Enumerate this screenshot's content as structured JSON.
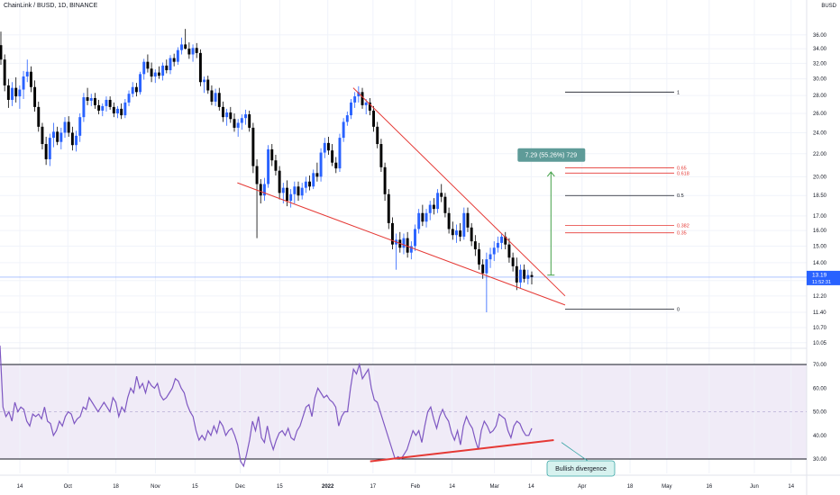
{
  "header": {
    "title": "ChainLink / BUSD, 1D, BINANCE",
    "currency": "BUSD"
  },
  "chart_data": [
    {
      "type": "candlestick",
      "title": "ChainLink / BUSD, 1D, BINANCE",
      "y_ticks": [
        "10.05",
        "10.70",
        "11.40",
        "12.20",
        "13.00",
        "14.00",
        "15.00",
        "16.00",
        "17.00",
        "18.50",
        "20.00",
        "22.00",
        "24.00",
        "26.00",
        "28.00",
        "30.00",
        "32.00",
        "34.00",
        "36.00"
      ],
      "x_ticks": [
        "14",
        "Oct",
        "18",
        "Nov",
        "15",
        "Dec",
        "15",
        "2022",
        "17",
        "Feb",
        "14",
        "Mar",
        "14",
        "Apr",
        "18",
        "May",
        "16",
        "Jun",
        "14"
      ],
      "current_price": "13.19",
      "countdown": "11:52:31",
      "colors": {
        "up": "#2962ff",
        "down": "#000000",
        "wedge": "#e53935",
        "projection": "#43a047",
        "price_line": "#2962ff"
      },
      "candles": [
        [
          34.5,
          36.5,
          31.8,
          32.5
        ],
        [
          32.5,
          33.2,
          28.5,
          29.2
        ],
        [
          29.2,
          30.0,
          26.6,
          27.5
        ],
        [
          27.5,
          29.6,
          26.8,
          28.9
        ],
        [
          28.9,
          30.2,
          27.2,
          27.9
        ],
        [
          27.9,
          29.2,
          26.5,
          28.7
        ],
        [
          28.7,
          31.0,
          27.6,
          30.3
        ],
        [
          30.3,
          32.5,
          29.6,
          30.9
        ],
        [
          30.9,
          31.6,
          28.4,
          29.0
        ],
        [
          29.0,
          29.8,
          26.2,
          26.7
        ],
        [
          26.7,
          27.3,
          24.1,
          24.6
        ],
        [
          24.6,
          25.0,
          22.4,
          22.9
        ],
        [
          22.9,
          23.6,
          21.0,
          21.5
        ],
        [
          21.5,
          23.9,
          20.9,
          23.5
        ],
        [
          23.5,
          25.0,
          22.6,
          24.1
        ],
        [
          24.1,
          24.6,
          22.8,
          23.1
        ],
        [
          23.1,
          24.5,
          22.4,
          24.0
        ],
        [
          24.0,
          25.6,
          23.5,
          25.1
        ],
        [
          25.1,
          25.7,
          23.6,
          24.0
        ],
        [
          24.0,
          24.6,
          22.3,
          22.8
        ],
        [
          22.8,
          24.2,
          22.2,
          23.7
        ],
        [
          23.7,
          26.0,
          23.1,
          25.6
        ],
        [
          25.6,
          28.3,
          25.1,
          27.8
        ],
        [
          27.8,
          28.9,
          26.9,
          27.4
        ],
        [
          27.4,
          28.2,
          26.8,
          27.7
        ],
        [
          27.7,
          28.3,
          26.5,
          26.9
        ],
        [
          26.9,
          27.5,
          25.9,
          26.3
        ],
        [
          26.3,
          27.1,
          25.7,
          26.8
        ],
        [
          26.8,
          27.9,
          26.2,
          27.5
        ],
        [
          27.5,
          27.9,
          26.4,
          26.7
        ],
        [
          26.7,
          27.2,
          25.6,
          26.0
        ],
        [
          26.0,
          26.8,
          25.5,
          26.5
        ],
        [
          26.5,
          27.1,
          25.4,
          25.8
        ],
        [
          25.8,
          27.6,
          25.5,
          27.2
        ],
        [
          27.2,
          28.6,
          26.8,
          28.2
        ],
        [
          28.2,
          29.6,
          27.8,
          29.0
        ],
        [
          29.0,
          29.5,
          27.9,
          28.4
        ],
        [
          28.4,
          30.9,
          28.1,
          30.6
        ],
        [
          30.6,
          32.6,
          29.9,
          32.2
        ],
        [
          32.2,
          33.2,
          30.8,
          31.3
        ],
        [
          31.3,
          32.1,
          29.6,
          30.3
        ],
        [
          30.3,
          31.2,
          29.5,
          30.8
        ],
        [
          30.8,
          31.6,
          30.0,
          30.4
        ],
        [
          30.4,
          32.1,
          29.8,
          31.7
        ],
        [
          31.7,
          32.5,
          30.7,
          31.1
        ],
        [
          31.1,
          33.1,
          30.6,
          32.7
        ],
        [
          32.7,
          33.3,
          31.6,
          32.2
        ],
        [
          32.2,
          34.2,
          31.8,
          33.8
        ],
        [
          33.8,
          35.6,
          33.2,
          34.6
        ],
        [
          34.6,
          36.9,
          33.9,
          34.0
        ],
        [
          34.0,
          34.9,
          32.6,
          33.2
        ],
        [
          33.2,
          34.6,
          32.2,
          34.1
        ],
        [
          34.1,
          34.8,
          32.7,
          33.4
        ],
        [
          33.4,
          33.9,
          29.1,
          29.6
        ],
        [
          29.6,
          30.3,
          28.3,
          29.9
        ],
        [
          29.9,
          30.4,
          28.2,
          28.6
        ],
        [
          28.6,
          29.2,
          26.9,
          27.3
        ],
        [
          27.3,
          28.8,
          26.8,
          28.3
        ],
        [
          28.3,
          28.9,
          26.3,
          26.7
        ],
        [
          26.7,
          27.3,
          25.1,
          25.6
        ],
        [
          25.6,
          26.5,
          24.7,
          26.1
        ],
        [
          26.1,
          26.7,
          25.0,
          25.4
        ],
        [
          25.4,
          26.0,
          24.1,
          24.5
        ],
        [
          24.5,
          25.4,
          23.6,
          25.0
        ],
        [
          25.0,
          25.9,
          24.3,
          25.5
        ],
        [
          25.5,
          26.4,
          24.8,
          25.9
        ],
        [
          25.9,
          26.3,
          24.1,
          24.5
        ],
        [
          24.5,
          25.0,
          20.3,
          20.9
        ],
        [
          20.9,
          21.5,
          15.5,
          19.4
        ],
        [
          19.4,
          19.8,
          17.9,
          18.5
        ],
        [
          18.5,
          19.9,
          18.1,
          19.4
        ],
        [
          19.4,
          22.8,
          19.1,
          22.4
        ],
        [
          22.4,
          22.9,
          20.9,
          21.4
        ],
        [
          21.4,
          21.9,
          20.1,
          20.5
        ],
        [
          20.5,
          20.9,
          18.2,
          18.7
        ],
        [
          18.7,
          19.5,
          17.9,
          19.1
        ],
        [
          19.1,
          19.7,
          17.7,
          18.1
        ],
        [
          18.1,
          19.0,
          17.6,
          18.6
        ],
        [
          18.6,
          19.6,
          17.9,
          19.2
        ],
        [
          19.2,
          19.6,
          18.1,
          18.5
        ],
        [
          18.5,
          19.5,
          18.2,
          19.1
        ],
        [
          19.1,
          20.0,
          18.7,
          19.6
        ],
        [
          19.6,
          20.1,
          18.9,
          19.2
        ],
        [
          19.2,
          20.6,
          19.0,
          20.3
        ],
        [
          20.3,
          21.2,
          19.6,
          20.0
        ],
        [
          20.0,
          22.5,
          19.6,
          22.1
        ],
        [
          22.1,
          23.5,
          21.6,
          23.0
        ],
        [
          23.0,
          23.6,
          21.9,
          22.3
        ],
        [
          22.3,
          22.9,
          20.9,
          21.2
        ],
        [
          21.2,
          21.7,
          20.3,
          20.7
        ],
        [
          20.7,
          23.9,
          20.4,
          23.5
        ],
        [
          23.5,
          25.5,
          23.1,
          25.1
        ],
        [
          25.1,
          26.2,
          24.7,
          25.8
        ],
        [
          25.8,
          27.6,
          25.4,
          27.2
        ],
        [
          27.2,
          28.4,
          26.6,
          27.9
        ],
        [
          27.9,
          29.1,
          27.2,
          28.4
        ],
        [
          28.4,
          28.9,
          26.5,
          26.9
        ],
        [
          26.9,
          27.6,
          25.9,
          27.2
        ],
        [
          27.2,
          27.7,
          25.8,
          26.3
        ],
        [
          26.3,
          26.8,
          24.1,
          24.6
        ],
        [
          24.6,
          25.1,
          22.5,
          22.9
        ],
        [
          22.9,
          23.4,
          20.4,
          20.8
        ],
        [
          20.8,
          21.2,
          18.1,
          18.6
        ],
        [
          18.6,
          19.0,
          16.1,
          16.5
        ],
        [
          16.5,
          16.9,
          14.8,
          15.1
        ],
        [
          15.1,
          15.8,
          13.6,
          15.4
        ],
        [
          15.4,
          15.9,
          14.6,
          14.9
        ],
        [
          14.9,
          15.8,
          14.5,
          15.5
        ],
        [
          15.5,
          15.9,
          14.3,
          14.6
        ],
        [
          14.6,
          15.3,
          14.2,
          15.0
        ],
        [
          15.0,
          16.4,
          14.7,
          16.1
        ],
        [
          16.1,
          17.5,
          15.8,
          17.2
        ],
        [
          17.2,
          17.8,
          16.3,
          16.6
        ],
        [
          16.6,
          17.5,
          16.2,
          17.2
        ],
        [
          17.2,
          18.1,
          16.7,
          17.8
        ],
        [
          17.8,
          18.3,
          17.1,
          17.5
        ],
        [
          17.5,
          19.0,
          17.2,
          18.7
        ],
        [
          18.7,
          19.4,
          18.0,
          18.4
        ],
        [
          18.4,
          18.7,
          16.9,
          17.2
        ],
        [
          17.2,
          17.6,
          15.8,
          16.1
        ],
        [
          16.1,
          16.6,
          15.4,
          15.7
        ],
        [
          15.7,
          16.4,
          15.2,
          16.0
        ],
        [
          16.0,
          16.5,
          15.3,
          15.6
        ],
        [
          15.6,
          17.6,
          15.4,
          17.2
        ],
        [
          17.2,
          17.6,
          15.9,
          16.2
        ],
        [
          16.2,
          16.5,
          15.0,
          15.3
        ],
        [
          15.3,
          15.7,
          14.4,
          14.8
        ],
        [
          14.8,
          15.2,
          13.6,
          13.9
        ],
        [
          13.9,
          14.2,
          13.1,
          13.4
        ],
        [
          13.4,
          14.6,
          11.4,
          14.2
        ],
        [
          14.2,
          14.9,
          13.7,
          14.5
        ],
        [
          14.5,
          15.3,
          14.1,
          14.9
        ],
        [
          14.9,
          15.6,
          14.6,
          15.2
        ],
        [
          15.2,
          15.8,
          14.8,
          15.6
        ],
        [
          15.6,
          15.9,
          14.8,
          15.1
        ],
        [
          15.1,
          15.5,
          14.0,
          14.3
        ],
        [
          14.3,
          14.6,
          13.5,
          13.8
        ],
        [
          13.8,
          14.3,
          12.5,
          12.9
        ],
        [
          12.9,
          13.9,
          12.6,
          13.6
        ],
        [
          13.6,
          13.9,
          12.9,
          13.1
        ],
        [
          13.1,
          13.6,
          12.8,
          13.3
        ],
        [
          13.3,
          13.5,
          12.8,
          13.19
        ]
      ],
      "wedge_upper": {
        "from": [
          "2022-01-10",
          28.9
        ],
        "to": [
          "2022-03-26",
          12.2
        ]
      },
      "wedge_lower": {
        "from": [
          "2021-11-30",
          19.5
        ],
        "to": [
          "2022-03-26",
          11.75
        ]
      },
      "projection_label": "7.29 (55.26%) 729",
      "fib_levels": [
        {
          "label": "1",
          "price": 28.4,
          "color": "#131722"
        },
        {
          "label": "0.65",
          "price": 20.75,
          "color": "#e53935"
        },
        {
          "label": "0.618",
          "price": 20.3,
          "color": "#e53935"
        },
        {
          "label": "0.5",
          "price": 18.5,
          "color": "#131722"
        },
        {
          "label": "0.382",
          "price": 16.35,
          "color": "#e53935"
        },
        {
          "label": "0.35",
          "price": 15.85,
          "color": "#e53935"
        },
        {
          "label": "0",
          "price": 11.55,
          "color": "#131722"
        }
      ]
    },
    {
      "type": "line",
      "ylim": [
        20,
        80
      ],
      "y_ticks": [
        30,
        40,
        50,
        60,
        70
      ],
      "y_tick_labels": [
        "30.00",
        "40.00",
        "50.00",
        "60.00",
        "70.00"
      ],
      "levels": {
        "upper": 70,
        "middle": 50,
        "lower": 30
      },
      "colors": {
        "line": "#7e57c2",
        "band": "#ede7f6",
        "divergence": "#e53935"
      },
      "values": [
        78,
        52,
        48,
        50,
        46,
        54,
        50,
        52,
        51,
        46,
        44,
        49,
        48,
        49,
        47,
        52,
        46,
        45,
        40,
        42,
        46,
        44,
        48,
        50,
        49,
        45,
        47,
        48,
        52,
        51,
        56,
        54,
        52,
        50,
        52,
        54,
        52,
        50,
        56,
        54,
        48,
        52,
        50,
        56,
        60,
        58,
        65,
        60,
        62,
        58,
        63,
        61,
        60,
        62,
        57,
        55,
        56,
        58,
        60,
        64,
        63,
        60,
        58,
        53,
        50,
        48,
        42,
        38,
        40,
        38,
        42,
        40,
        44,
        41,
        46,
        44,
        40,
        42,
        43,
        40,
        36,
        29,
        27,
        32,
        38,
        46,
        42,
        48,
        39,
        37,
        44,
        38,
        34,
        38,
        41,
        42,
        40,
        43,
        39,
        38,
        42,
        44,
        48,
        52,
        53,
        48,
        56,
        60,
        58,
        56,
        57,
        55,
        54,
        52,
        44,
        48,
        50,
        50,
        60,
        68,
        66,
        70,
        64,
        66,
        68,
        60,
        55,
        54,
        50,
        46,
        42,
        38,
        34,
        30,
        31,
        30,
        32,
        34,
        38,
        42,
        40,
        42,
        37,
        44,
        50,
        52,
        47,
        43,
        48,
        51,
        48,
        46,
        41,
        38,
        42,
        36,
        44,
        48,
        45,
        43,
        38,
        34,
        42,
        46,
        44,
        41,
        42,
        44,
        49,
        48,
        47,
        42,
        39,
        44,
        46,
        45,
        42,
        40,
        40,
        43
      ],
      "divergence": {
        "from": [
          "2022-01-16",
          29
        ],
        "to": [
          "2022-03-22",
          38
        ]
      },
      "annotation": "Bullish divergence"
    }
  ]
}
